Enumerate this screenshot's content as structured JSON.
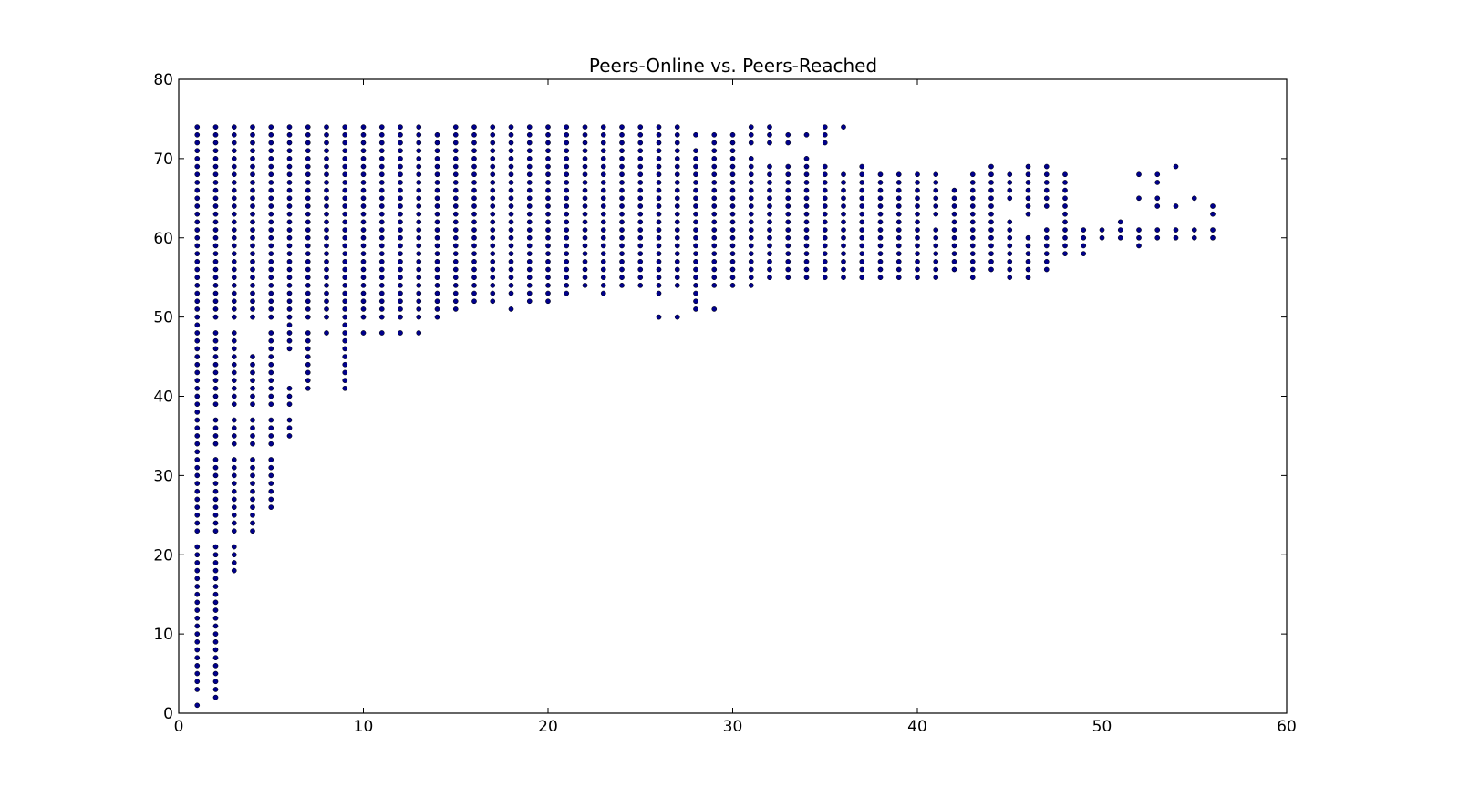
{
  "chart_data": {
    "type": "scatter",
    "title": "Peers-Online vs. Peers-Reached",
    "xlabel": "",
    "ylabel": "",
    "xlim": [
      0,
      60
    ],
    "ylim": [
      0,
      80
    ],
    "x_ticks": [
      0,
      10,
      20,
      30,
      40,
      50,
      60
    ],
    "y_ticks": [
      0,
      10,
      20,
      30,
      40,
      50,
      60,
      70,
      80
    ],
    "grid": false,
    "legend": "none",
    "marker_color": "#00008b",
    "columns": [
      {
        "x": 1,
        "y": [
          [
            1,
            1
          ],
          [
            3,
            21
          ],
          [
            23,
            74
          ]
        ]
      },
      {
        "x": 2,
        "y": [
          [
            2,
            21
          ],
          [
            23,
            32
          ],
          [
            34,
            37
          ],
          [
            39,
            48
          ],
          [
            50,
            74
          ]
        ]
      },
      {
        "x": 3,
        "y": [
          [
            18,
            21
          ],
          [
            23,
            32
          ],
          [
            34,
            37
          ],
          [
            39,
            48
          ],
          [
            50,
            74
          ]
        ]
      },
      {
        "x": 4,
        "y": [
          [
            23,
            32
          ],
          [
            34,
            37
          ],
          [
            39,
            45
          ],
          [
            50,
            74
          ]
        ]
      },
      {
        "x": 5,
        "y": [
          [
            26,
            32
          ],
          [
            34,
            37
          ],
          [
            39,
            48
          ],
          [
            50,
            74
          ]
        ]
      },
      {
        "x": 6,
        "y": [
          [
            35,
            37
          ],
          [
            39,
            41
          ],
          [
            46,
            74
          ]
        ]
      },
      {
        "x": 7,
        "y": [
          [
            41,
            48
          ],
          [
            50,
            74
          ]
        ]
      },
      {
        "x": 8,
        "y": [
          [
            48,
            48
          ],
          [
            50,
            74
          ]
        ]
      },
      {
        "x": 9,
        "y": [
          [
            41,
            74
          ]
        ]
      },
      {
        "x": 10,
        "y": [
          [
            48,
            48
          ],
          [
            50,
            74
          ]
        ]
      },
      {
        "x": 11,
        "y": [
          [
            48,
            48
          ],
          [
            50,
            74
          ]
        ]
      },
      {
        "x": 12,
        "y": [
          [
            48,
            48
          ],
          [
            50,
            74
          ]
        ]
      },
      {
        "x": 13,
        "y": [
          [
            48,
            48
          ],
          [
            50,
            74
          ]
        ]
      },
      {
        "x": 14,
        "y": [
          [
            50,
            73
          ]
        ]
      },
      {
        "x": 15,
        "y": [
          [
            51,
            74
          ]
        ]
      },
      {
        "x": 16,
        "y": [
          [
            52,
            74
          ]
        ]
      },
      {
        "x": 17,
        "y": [
          [
            52,
            74
          ]
        ]
      },
      {
        "x": 18,
        "y": [
          [
            51,
            51
          ],
          [
            53,
            74
          ]
        ]
      },
      {
        "x": 19,
        "y": [
          [
            52,
            74
          ]
        ]
      },
      {
        "x": 20,
        "y": [
          [
            52,
            74
          ]
        ]
      },
      {
        "x": 21,
        "y": [
          [
            53,
            74
          ]
        ]
      },
      {
        "x": 22,
        "y": [
          [
            54,
            74
          ]
        ]
      },
      {
        "x": 23,
        "y": [
          [
            53,
            74
          ]
        ]
      },
      {
        "x": 24,
        "y": [
          [
            54,
            74
          ]
        ]
      },
      {
        "x": 25,
        "y": [
          [
            54,
            74
          ]
        ]
      },
      {
        "x": 26,
        "y": [
          [
            50,
            50
          ],
          [
            53,
            74
          ]
        ]
      },
      {
        "x": 27,
        "y": [
          [
            50,
            50
          ],
          [
            54,
            74
          ]
        ]
      },
      {
        "x": 28,
        "y": [
          [
            51,
            71
          ],
          [
            73,
            73
          ]
        ]
      },
      {
        "x": 29,
        "y": [
          [
            51,
            51
          ],
          [
            54,
            73
          ]
        ]
      },
      {
        "x": 30,
        "y": [
          [
            54,
            73
          ]
        ]
      },
      {
        "x": 31,
        "y": [
          [
            54,
            70
          ],
          [
            72,
            74
          ]
        ]
      },
      {
        "x": 32,
        "y": [
          [
            55,
            69
          ],
          [
            72,
            74
          ]
        ]
      },
      {
        "x": 33,
        "y": [
          [
            55,
            69
          ],
          [
            72,
            73
          ]
        ]
      },
      {
        "x": 34,
        "y": [
          [
            55,
            70
          ],
          [
            73,
            73
          ]
        ]
      },
      {
        "x": 35,
        "y": [
          [
            55,
            69
          ],
          [
            72,
            74
          ]
        ]
      },
      {
        "x": 36,
        "y": [
          [
            55,
            68
          ],
          [
            74,
            74
          ]
        ]
      },
      {
        "x": 37,
        "y": [
          [
            55,
            69
          ]
        ]
      },
      {
        "x": 38,
        "y": [
          [
            55,
            68
          ]
        ]
      },
      {
        "x": 39,
        "y": [
          [
            55,
            68
          ]
        ]
      },
      {
        "x": 40,
        "y": [
          [
            55,
            68
          ]
        ]
      },
      {
        "x": 41,
        "y": [
          [
            55,
            61
          ],
          [
            63,
            68
          ]
        ]
      },
      {
        "x": 42,
        "y": [
          [
            56,
            66
          ]
        ]
      },
      {
        "x": 43,
        "y": [
          [
            55,
            68
          ]
        ]
      },
      {
        "x": 44,
        "y": [
          [
            56,
            69
          ]
        ]
      },
      {
        "x": 45,
        "y": [
          [
            55,
            62
          ],
          [
            65,
            68
          ]
        ]
      },
      {
        "x": 46,
        "y": [
          [
            55,
            60
          ],
          [
            63,
            69
          ]
        ]
      },
      {
        "x": 47,
        "y": [
          [
            56,
            61
          ],
          [
            64,
            69
          ]
        ]
      },
      {
        "x": 48,
        "y": [
          [
            58,
            68
          ]
        ]
      },
      {
        "x": 49,
        "y": [
          [
            58,
            61
          ]
        ]
      },
      {
        "x": 50,
        "y": [
          [
            60,
            61
          ]
        ]
      },
      {
        "x": 51,
        "y": [
          [
            60,
            62
          ]
        ]
      },
      {
        "x": 52,
        "y": [
          [
            59,
            61
          ],
          [
            65,
            65
          ],
          [
            68,
            68
          ]
        ]
      },
      {
        "x": 53,
        "y": [
          [
            60,
            61
          ],
          [
            64,
            65
          ],
          [
            67,
            68
          ]
        ]
      },
      {
        "x": 54,
        "y": [
          [
            60,
            61
          ],
          [
            64,
            64
          ],
          [
            69,
            69
          ]
        ]
      },
      {
        "x": 55,
        "y": [
          [
            60,
            61
          ],
          [
            65,
            65
          ]
        ]
      },
      {
        "x": 56,
        "y": [
          [
            60,
            61
          ],
          [
            63,
            64
          ]
        ]
      }
    ]
  }
}
